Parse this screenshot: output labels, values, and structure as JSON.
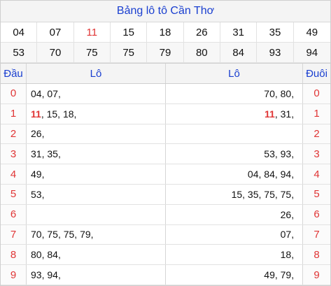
{
  "title": "Bảng lô tô Cần Thơ",
  "numbers_row1": [
    "04",
    "07",
    "11",
    "15",
    "18",
    "26",
    "31",
    "35",
    "49"
  ],
  "numbers_row2": [
    "53",
    "70",
    "75",
    "75",
    "79",
    "80",
    "84",
    "93",
    "94"
  ],
  "highlight_number": "11",
  "headers": {
    "dau": "Đầu",
    "lo_left": "Lô",
    "lo_right": "Lô",
    "duoi": "Đuôi"
  },
  "rows": [
    {
      "dau": "0",
      "lo_left": [
        "04",
        "07"
      ],
      "lo_right": [
        "70",
        "80"
      ],
      "duoi": "0"
    },
    {
      "dau": "1",
      "lo_left": [
        "11",
        "15",
        "18"
      ],
      "lo_right": [
        "11",
        "31"
      ],
      "duoi": "1"
    },
    {
      "dau": "2",
      "lo_left": [
        "26"
      ],
      "lo_right": [],
      "duoi": "2"
    },
    {
      "dau": "3",
      "lo_left": [
        "31",
        "35"
      ],
      "lo_right": [
        "53",
        "93"
      ],
      "duoi": "3"
    },
    {
      "dau": "4",
      "lo_left": [
        "49"
      ],
      "lo_right": [
        "04",
        "84",
        "94"
      ],
      "duoi": "4"
    },
    {
      "dau": "5",
      "lo_left": [
        "53"
      ],
      "lo_right": [
        "15",
        "35",
        "75",
        "75"
      ],
      "duoi": "5"
    },
    {
      "dau": "6",
      "lo_left": [],
      "lo_right": [
        "26"
      ],
      "duoi": "6"
    },
    {
      "dau": "7",
      "lo_left": [
        "70",
        "75",
        "75",
        "79"
      ],
      "lo_right": [
        "07"
      ],
      "duoi": "7"
    },
    {
      "dau": "8",
      "lo_left": [
        "80",
        "84"
      ],
      "lo_right": [
        "18"
      ],
      "duoi": "8"
    },
    {
      "dau": "9",
      "lo_left": [
        "93",
        "94"
      ],
      "lo_right": [
        "49",
        "79"
      ],
      "duoi": "9"
    }
  ],
  "colors": {
    "title": "#1a3fd0",
    "highlight": "#e03535",
    "head_digit": "#e03535"
  }
}
